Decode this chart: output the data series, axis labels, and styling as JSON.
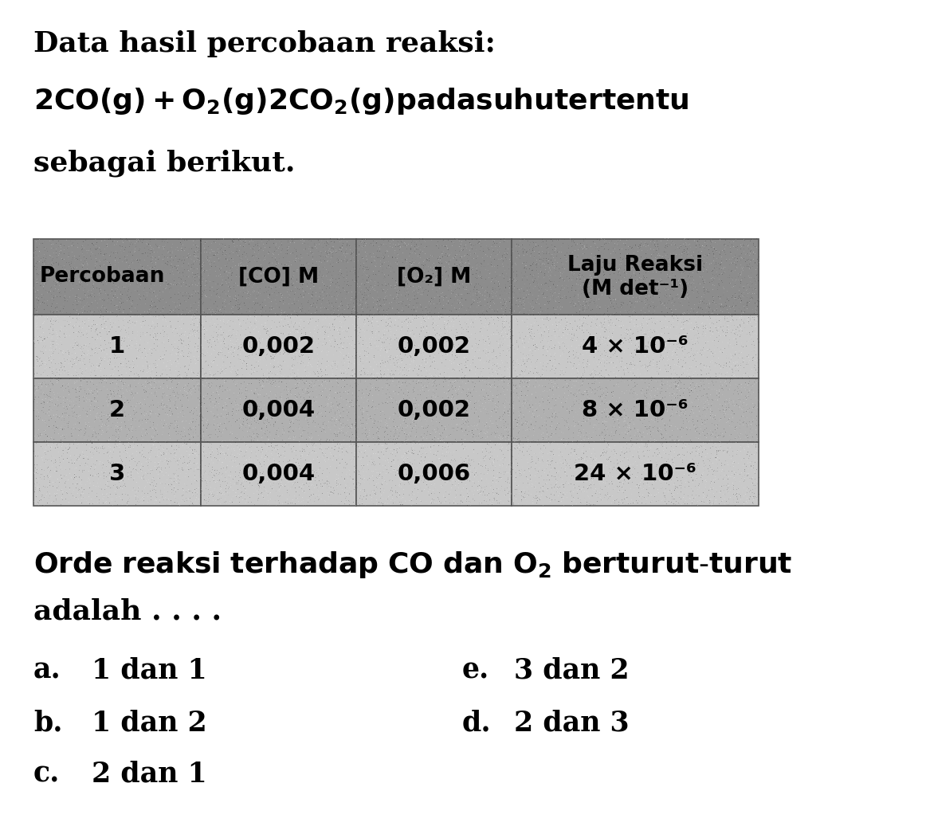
{
  "title_line1": "Data hasil percobaan reaksi:",
  "title_line2": "2CO(g) + O₂(g) 2CO₂(g) pada suhu tertentu",
  "title_line3": "sebagai berikut.",
  "table_headers": [
    "Percobaan",
    "[CO] M",
    "[O₂] M",
    "Laju Reaksi\n(M det⁻¹)"
  ],
  "table_rows": [
    [
      "1",
      "0,002",
      "0,002",
      "4 × 10⁻⁶"
    ],
    [
      "2",
      "0,004",
      "0,002",
      "8 × 10⁻⁶"
    ],
    [
      "3",
      "0,004",
      "0,006",
      "24 × 10⁻⁶"
    ]
  ],
  "header_bg": "#8c8c8c",
  "row_bg_light": "#c8c8c8",
  "row_bg_medium": "#b0b0b0",
  "question_line1": "Orde reaksi terhadap CO dan O₂ berturut-turut",
  "question_line2": "adalah . . . .",
  "options_left": [
    {
      "label": "a.",
      "text": "1 dan 1"
    },
    {
      "label": "b.",
      "text": "1 dan 2"
    },
    {
      "label": "c.",
      "text": "2 dan 1"
    }
  ],
  "options_right": [
    {
      "label": "e.",
      "text": "3 dan 2"
    },
    {
      "label": "d.",
      "text": "2 dan 3"
    }
  ],
  "bg_color": "#ffffff",
  "text_color": "#000000",
  "font_size_title": 26,
  "font_size_table_header": 19,
  "font_size_table_data": 21,
  "font_size_question": 26,
  "font_size_options": 25
}
